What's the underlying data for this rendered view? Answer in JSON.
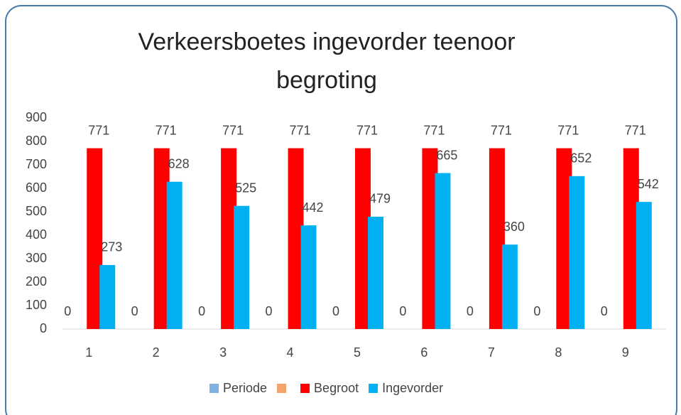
{
  "chart_data": {
    "type": "bar",
    "title": "Verkeersboetes ingevorder teenoor begroting",
    "categories": [
      "1",
      "2",
      "3",
      "4",
      "5",
      "6",
      "7",
      "8",
      "9"
    ],
    "series": [
      {
        "name": "Periode",
        "color": "#7fb2e0",
        "values": [
          0,
          0,
          0,
          0,
          0,
          0,
          0,
          0,
          0
        ]
      },
      {
        "color": "#f4a46a",
        "values": [
          null,
          null,
          null,
          null,
          null,
          null,
          null,
          null,
          null
        ]
      },
      {
        "name": "Begroot",
        "color": "#ff0000",
        "values": [
          771,
          771,
          771,
          771,
          771,
          771,
          771,
          771,
          771
        ]
      },
      {
        "name": "Ingevorder",
        "color": "#00b0f0",
        "values": [
          273,
          628,
          525,
          442,
          479,
          665,
          360,
          652,
          542
        ]
      }
    ],
    "ylim": [
      0,
      900
    ],
    "yticks": [
      0,
      100,
      200,
      300,
      400,
      500,
      600,
      700,
      800,
      900
    ],
    "grid": false,
    "legend": "bottom"
  }
}
